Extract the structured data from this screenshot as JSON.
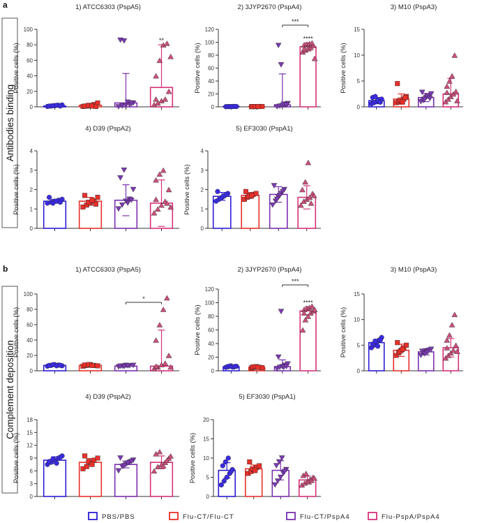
{
  "figure": {
    "sections": [
      {
        "letter": "a",
        "label": "Antibodies binding"
      },
      {
        "letter": "b",
        "label": "Complement deposition"
      }
    ],
    "legend": [
      {
        "label": "PBS/PBS",
        "color": "#2b1bd6"
      },
      {
        "label": "Flu-CT/Flu-CT",
        "color": "#e8302a"
      },
      {
        "label": "Flu-CT/PspA4",
        "color": "#7a2fb0"
      },
      {
        "label": "Flu-PspA/PspA4",
        "color": "#d6317a"
      }
    ]
  },
  "chart_data": [
    {
      "type": "bar",
      "section": "a",
      "title": "1) ATCC6303 (PspA5)",
      "ylabel": "Positive cells (%)",
      "ylim": [
        0,
        100
      ],
      "yticks": [
        0,
        20,
        40,
        60,
        80,
        100
      ],
      "categories": [
        "PBS/PBS",
        "Flu-CT/Flu-CT",
        "Flu-CT/PspA4",
        "Flu-PspA/PspA4"
      ],
      "values": [
        1,
        2,
        5,
        25
      ],
      "errors": [
        1,
        2,
        38,
        55
      ],
      "points": [
        [
          0.5,
          1,
          1.5,
          2,
          2.5,
          1,
          1.5,
          2,
          1
        ],
        [
          0.5,
          1,
          1.5,
          3,
          5,
          1,
          2,
          1,
          0.5
        ],
        [
          0,
          1,
          2,
          3,
          5,
          86,
          85,
          6,
          4
        ],
        [
          3,
          5,
          8,
          10,
          20,
          40,
          60,
          80,
          82,
          65,
          10
        ]
      ],
      "annotations": [
        {
          "group": 3,
          "text": "**"
        }
      ]
    },
    {
      "type": "bar",
      "section": "a",
      "title": "2) 3JYP2670 (PspA4)",
      "ylabel": "Positive cells (%)",
      "ylim": [
        0,
        120
      ],
      "yticks": [
        0,
        20,
        40,
        60,
        80,
        100,
        120
      ],
      "categories": [
        "PBS/PBS",
        "Flu-CT/Flu-CT",
        "Flu-CT/PspA4",
        "Flu-PspA/PspA4"
      ],
      "values": [
        0.5,
        0.5,
        3,
        93
      ],
      "errors": [
        0.5,
        0.5,
        48,
        6
      ],
      "points": [
        [
          0.3,
          0.5,
          0.4,
          0.6,
          0.5,
          0.3,
          0.4,
          0.5,
          0.6
        ],
        [
          0.3,
          0.5,
          0.4,
          0.6,
          0.5,
          0.3,
          0.4,
          0.5
        ],
        [
          0,
          1,
          2,
          3,
          5,
          95,
          65,
          4,
          3
        ],
        [
          85,
          88,
          90,
          92,
          95,
          96,
          97,
          98,
          99,
          75,
          90
        ]
      ],
      "annotations": [
        {
          "group": 3,
          "text": "****"
        }
      ],
      "brackets": [
        {
          "from": 2,
          "to": 3,
          "text": "***"
        }
      ]
    },
    {
      "type": "bar",
      "section": "a",
      "title": "3) M10 (PspA3)",
      "ylabel": "Positive cells (%)",
      "ylim": [
        0,
        15
      ],
      "yticks": [
        0,
        5,
        10,
        15
      ],
      "categories": [
        "PBS/PBS",
        "Flu-CT/Flu-CT",
        "Flu-CT/PspA4",
        "Flu-PspA/PspA4"
      ],
      "values": [
        1.2,
        1.5,
        1.8,
        2.5
      ],
      "errors": [
        0.6,
        1.0,
        0.8,
        3.0
      ],
      "points": [
        [
          0.6,
          0.8,
          1,
          1.2,
          1.5,
          1.8,
          2,
          1.3,
          0.9
        ],
        [
          0.8,
          1,
          1.2,
          1.5,
          2,
          4.5,
          1.3,
          1,
          1.8
        ],
        [
          1,
          1.2,
          1.8,
          2,
          2.5,
          2.8,
          1.5,
          2,
          1.6
        ],
        [
          1,
          1.5,
          2,
          2.5,
          3,
          4,
          5,
          6,
          10,
          1.2,
          2.8
        ]
      ]
    },
    {
      "type": "bar",
      "section": "a",
      "title": "4) D39 (PspA2)",
      "ylabel": "Positive cells (%)",
      "ylim": [
        0,
        4
      ],
      "yticks": [
        0,
        1,
        2,
        3,
        4
      ],
      "categories": [
        "PBS/PBS",
        "Flu-CT/Flu-CT",
        "Flu-CT/PspA4",
        "Flu-PspA/PspA4"
      ],
      "values": [
        1.4,
        1.4,
        1.45,
        1.3
      ],
      "errors": [
        0.1,
        0.2,
        0.8,
        1.2
      ],
      "points": [
        [
          1.3,
          1.35,
          1.4,
          1.45,
          1.5,
          1.6,
          1.3,
          1.4,
          1.35
        ],
        [
          1.1,
          1.2,
          1.3,
          1.4,
          1.6,
          1.7,
          1.35,
          1.45,
          1.25
        ],
        [
          1,
          1.2,
          1.4,
          1.5,
          2.0,
          2.6,
          3.0,
          1.3,
          1.45
        ],
        [
          0.8,
          1.0,
          1.2,
          1.4,
          2.0,
          2.5,
          2.8,
          3.0,
          1.3,
          1.1,
          1.5
        ]
      ]
    },
    {
      "type": "bar",
      "section": "a",
      "title": "5) EF3030 (PspA1)",
      "ylabel": "Positive cells (%)",
      "ylim": [
        0,
        4
      ],
      "yticks": [
        0,
        1,
        2,
        3,
        4
      ],
      "categories": [
        "PBS/PBS",
        "Flu-CT/Flu-CT",
        "Flu-CT/PspA4",
        "Flu-PspA/PspA4"
      ],
      "values": [
        1.65,
        1.7,
        1.75,
        1.6
      ],
      "errors": [
        0.2,
        0.15,
        0.4,
        0.6
      ],
      "points": [
        [
          1.4,
          1.5,
          1.6,
          1.7,
          1.8,
          1.9,
          1.55,
          1.65,
          1.75
        ],
        [
          1.5,
          1.6,
          1.7,
          1.75,
          1.8,
          1.9,
          1.65,
          1.7
        ],
        [
          1.2,
          1.4,
          1.6,
          1.8,
          2.0,
          2.2,
          1.5,
          1.7,
          1.9
        ],
        [
          1.2,
          1.4,
          1.5,
          1.6,
          1.8,
          2.0,
          2.4,
          3.4,
          1.3,
          1.7
        ]
      ]
    },
    {
      "type": "bar",
      "section": "b",
      "title": "1) ATCC6303 (PspA5)",
      "ylabel": "Positive cells (%)",
      "ylim": [
        0,
        100
      ],
      "yticks": [
        0,
        20,
        40,
        60,
        80,
        100
      ],
      "categories": [
        "PBS/PBS",
        "Flu-CT/Flu-CT",
        "Flu-CT/PspA4",
        "Flu-PspA/PspA4"
      ],
      "values": [
        7,
        7,
        6,
        6
      ],
      "errors": [
        1,
        1,
        1,
        47
      ],
      "points": [
        [
          6,
          7,
          8,
          7.5,
          6.5,
          7,
          8,
          6.5,
          7.2
        ],
        [
          6,
          7,
          8,
          7,
          6.5,
          7.5,
          8,
          6.8
        ],
        [
          5,
          6,
          7,
          6.5,
          7,
          6,
          5.5,
          6.5
        ],
        [
          3,
          5,
          8,
          10,
          20,
          40,
          60,
          80,
          95,
          5,
          6
        ]
      ],
      "brackets": [
        {
          "from": 2,
          "to": 3,
          "text": "*"
        }
      ]
    },
    {
      "type": "bar",
      "section": "b",
      "title": "2) 3JYP2670 (PspA4)",
      "ylabel": "Positive cells (%)",
      "ylim": [
        0,
        120
      ],
      "yticks": [
        0,
        20,
        40,
        60,
        80,
        100,
        120
      ],
      "categories": [
        "PBS/PBS",
        "Flu-CT/Flu-CT",
        "Flu-CT/PspA4",
        "Flu-PspA/PspA4"
      ],
      "values": [
        6,
        5,
        6,
        88
      ],
      "errors": [
        1,
        1,
        10,
        6
      ],
      "points": [
        [
          5,
          6,
          7,
          5.5,
          6.5,
          6,
          7,
          5.5,
          6.5
        ],
        [
          4,
          5,
          6,
          5,
          4.5,
          5.5,
          6,
          5
        ],
        [
          3,
          5,
          6,
          8,
          10,
          20,
          87,
          5,
          6
        ],
        [
          60,
          75,
          80,
          85,
          88,
          90,
          92,
          93,
          95,
          90,
          85
        ]
      ],
      "annotations": [
        {
          "group": 3,
          "text": "****"
        }
      ],
      "brackets": [
        {
          "from": 2,
          "to": 3,
          "text": "***"
        }
      ]
    },
    {
      "type": "bar",
      "section": "b",
      "title": "3) M10 (PspA3)",
      "ylabel": "Positive cells (%)",
      "ylim": [
        0,
        15
      ],
      "yticks": [
        0,
        5,
        10,
        15
      ],
      "categories": [
        "PBS/PBS",
        "Flu-CT/Flu-CT",
        "Flu-CT/PspA4",
        "Flu-PspA/PspA4"
      ],
      "values": [
        5.5,
        4,
        3.7,
        4.5
      ],
      "errors": [
        0.6,
        1.2,
        0.6,
        1.8
      ],
      "points": [
        [
          4.5,
          5,
          5.5,
          6,
          6.5,
          5.2,
          5.8,
          4.8,
          6
        ],
        [
          3,
          3.5,
          4,
          4.5,
          5,
          5.5,
          3.8,
          4.2
        ],
        [
          3,
          3.5,
          3.7,
          4,
          4.2,
          3.8,
          3.3,
          3.6
        ],
        [
          2.5,
          3,
          3.5,
          4,
          5,
          6,
          7,
          9,
          11,
          3.8,
          4.5
        ]
      ]
    },
    {
      "type": "bar",
      "section": "b",
      "title": "4) D39 (PspA2)",
      "ylabel": "Positive cells (%)",
      "ylim": [
        0,
        18
      ],
      "yticks": [
        0,
        3,
        6,
        9,
        12,
        15,
        18
      ],
      "categories": [
        "PBS/PBS",
        "Flu-CT/Flu-CT",
        "Flu-CT/PspA4",
        "Flu-PspA/PspA4"
      ],
      "values": [
        8.5,
        8,
        7.5,
        8
      ],
      "errors": [
        0.8,
        0.9,
        0.8,
        1.5
      ],
      "points": [
        [
          7.5,
          8,
          8.5,
          9,
          9.5,
          8.2,
          8.8,
          7.8,
          9.2
        ],
        [
          6.5,
          7,
          8,
          8.5,
          9,
          9.5,
          8.2,
          7.5
        ],
        [
          6,
          7,
          7.5,
          8,
          8.5,
          9,
          7.2,
          7.8,
          8.2
        ],
        [
          6,
          7,
          7.5,
          8,
          9,
          10,
          10.5,
          7.2,
          8.5,
          9.5
        ]
      ]
    },
    {
      "type": "bar",
      "section": "b",
      "title": "5) EF3030 (PspA1)",
      "ylabel": "Positive cells (%)",
      "ylim": [
        0,
        20
      ],
      "yticks": [
        0,
        5,
        10,
        15,
        20
      ],
      "categories": [
        "PBS/PBS",
        "Flu-CT/Flu-CT",
        "Flu-CT/PspA4",
        "Flu-PspA/PspA4"
      ],
      "values": [
        6.8,
        7.2,
        6.8,
        4.3
      ],
      "errors": [
        2,
        1,
        2.5,
        1
      ],
      "points": [
        [
          3,
          4,
          5,
          6,
          7,
          8,
          9,
          10,
          6.5
        ],
        [
          6,
          6.5,
          7,
          7.5,
          8,
          9,
          7.2,
          6.8
        ],
        [
          3,
          4,
          5,
          6,
          7,
          8,
          9,
          10,
          6.5
        ],
        [
          3,
          3.5,
          4,
          4.5,
          5,
          5.5,
          6,
          3.8,
          4.2,
          4.8
        ]
      ]
    }
  ]
}
